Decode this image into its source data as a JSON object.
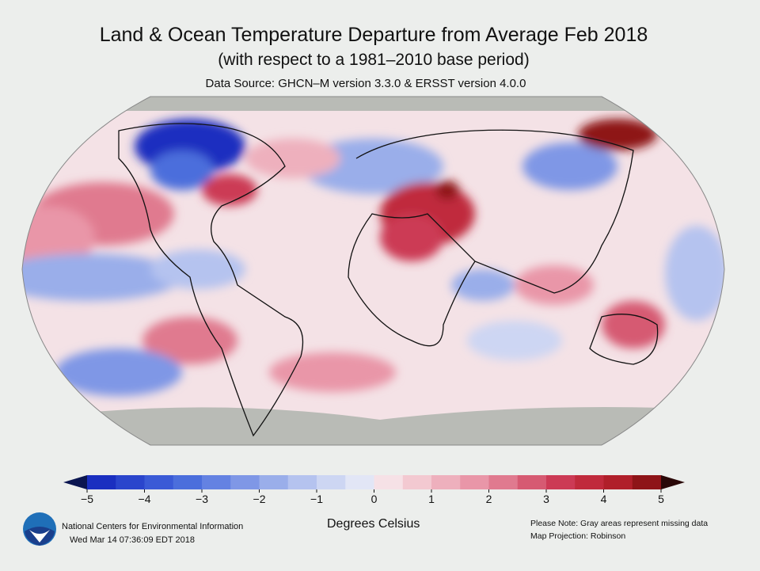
{
  "title": "Land & Ocean Temperature Departure from Average Feb 2018",
  "subtitle": "(with respect to a 1981–2010 base period)",
  "source": "Data Source: GHCN–M version 3.3.0 & ERSST version 4.0.0",
  "legend": {
    "ticks": [
      "−5",
      "−4",
      "−3",
      "−2",
      "−1",
      "0",
      "1",
      "2",
      "3",
      "4",
      "5"
    ],
    "range": [
      -5,
      5
    ],
    "step": 0.5,
    "units": "Degrees Celsius",
    "colors": [
      "#1a2fc0",
      "#2a45cc",
      "#3a5ad6",
      "#4b6edc",
      "#6482e2",
      "#7f97e6",
      "#9aaeea",
      "#b5c3ef",
      "#cdd6f3",
      "#e2e6f6",
      "#f6e1e6",
      "#f3c9d1",
      "#eeb0bd",
      "#e996a8",
      "#e07a8f",
      "#d65a72",
      "#cc3a55",
      "#c02a3c",
      "#b01f2a",
      "#8e1418"
    ],
    "missing_color": "#b9bbb6"
  },
  "footer": {
    "org": "National Centers for Environmental Information",
    "date": "Wed Mar 14 07:36:09 EDT 2018",
    "note": "Please Note: Gray areas represent missing data",
    "projection": "Map Projection: Robinson"
  },
  "logo": "noaa-logo"
}
